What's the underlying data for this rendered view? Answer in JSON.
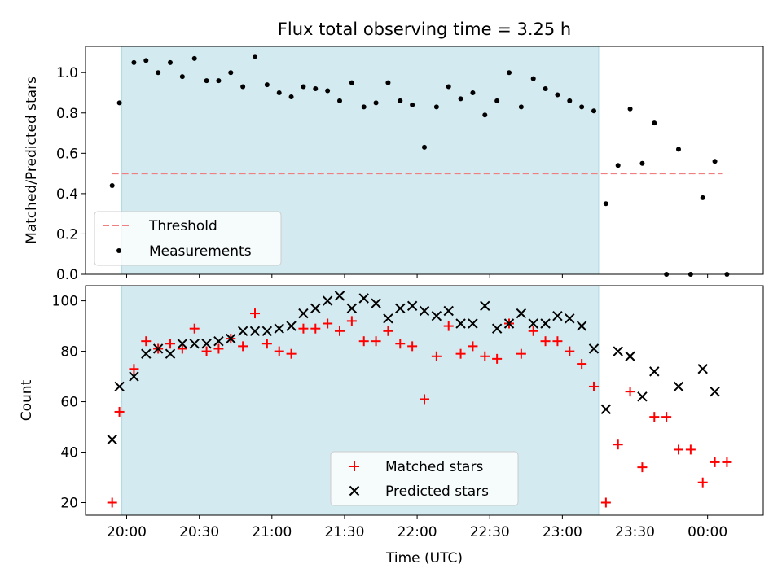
{
  "chart_data": [
    {
      "type": "scatter",
      "title": "Flux total observing time = 3.25 h",
      "xlabel": "",
      "ylabel": "Matched/Predicted stars",
      "ylim": [
        0,
        1.13
      ],
      "yticks": [
        "0.0",
        "0.2",
        "0.4",
        "0.6",
        "0.8",
        "1.0"
      ],
      "legend_position": "lower-left",
      "shaded_span": {
        "start": "19:58",
        "end": "23:15",
        "color": "#d3eaf0"
      },
      "threshold": {
        "name": "Threshold",
        "value": 0.5,
        "x_start": "19:54",
        "x_end": "00:06",
        "color": "#f08080",
        "style": "dashed"
      },
      "series": [
        {
          "name": "Measurements",
          "color": "#000000",
          "marker": "dot",
          "x": [
            "19:54",
            "19:57",
            "20:03",
            "20:08",
            "20:13",
            "20:18",
            "20:23",
            "20:28",
            "20:33",
            "20:38",
            "20:43",
            "20:48",
            "20:53",
            "20:58",
            "21:03",
            "21:08",
            "21:13",
            "21:18",
            "21:23",
            "21:28",
            "21:33",
            "21:38",
            "21:43",
            "21:48",
            "21:53",
            "21:58",
            "22:03",
            "22:08",
            "22:13",
            "22:18",
            "22:23",
            "22:28",
            "22:33",
            "22:38",
            "22:43",
            "22:48",
            "22:53",
            "22:58",
            "23:03",
            "23:08",
            "23:13",
            "23:18",
            "23:23",
            "23:28",
            "23:33",
            "23:38",
            "23:43",
            "23:48",
            "23:53",
            "23:58",
            "00:03",
            "00:08"
          ],
          "y": [
            0.44,
            0.85,
            1.05,
            1.06,
            1.0,
            1.05,
            0.98,
            1.07,
            0.96,
            0.96,
            1.0,
            0.93,
            1.08,
            0.94,
            0.9,
            0.88,
            0.93,
            0.92,
            0.91,
            0.86,
            0.95,
            0.83,
            0.85,
            0.95,
            0.86,
            0.84,
            0.63,
            0.83,
            0.93,
            0.87,
            0.9,
            0.79,
            0.86,
            1.0,
            0.83,
            0.97,
            0.92,
            0.89,
            0.86,
            0.83,
            0.81,
            0.35,
            0.54,
            0.82,
            0.55,
            0.75,
            0.0,
            0.62,
            0.0,
            0.38,
            0.56,
            0.0
          ]
        }
      ]
    },
    {
      "type": "scatter",
      "title": "",
      "xlabel": "Time (UTC)",
      "ylabel": "Count",
      "ylim": [
        15,
        106
      ],
      "yticks": [
        "20",
        "40",
        "60",
        "80",
        "100"
      ],
      "xticks": [
        "20:00",
        "20:30",
        "21:00",
        "21:30",
        "22:00",
        "22:30",
        "23:00",
        "23:30",
        "00:00"
      ],
      "legend_position": "lower-center",
      "shaded_span": {
        "start": "19:58",
        "end": "23:15",
        "color": "#d3eaf0"
      },
      "series": [
        {
          "name": "Matched stars",
          "color": "#ff0000",
          "marker": "plus",
          "x": [
            "19:54",
            "19:57",
            "20:03",
            "20:08",
            "20:13",
            "20:18",
            "20:23",
            "20:28",
            "20:33",
            "20:38",
            "20:43",
            "20:48",
            "20:53",
            "20:58",
            "21:03",
            "21:08",
            "21:13",
            "21:18",
            "21:23",
            "21:28",
            "21:33",
            "21:38",
            "21:43",
            "21:48",
            "21:53",
            "21:58",
            "22:03",
            "22:08",
            "22:13",
            "22:18",
            "22:23",
            "22:28",
            "22:33",
            "22:38",
            "22:43",
            "22:48",
            "22:53",
            "22:58",
            "23:03",
            "23:08",
            "23:13",
            "23:18",
            "23:23",
            "23:28",
            "23:33",
            "23:38",
            "23:43",
            "23:48",
            "23:53",
            "23:58",
            "00:03",
            "00:08"
          ],
          "y": [
            20,
            56,
            73,
            84,
            81,
            83,
            81,
            89,
            80,
            81,
            85,
            82,
            95,
            83,
            80,
            79,
            89,
            89,
            91,
            88,
            92,
            84,
            84,
            88,
            83,
            82,
            61,
            78,
            90,
            79,
            82,
            78,
            77,
            91,
            79,
            88,
            84,
            84,
            80,
            75,
            66,
            20,
            43,
            64,
            34,
            54,
            54,
            41,
            41,
            28,
            36,
            36
          ]
        },
        {
          "name": "Predicted stars",
          "color": "#000000",
          "marker": "x",
          "x": [
            "19:54",
            "19:57",
            "20:03",
            "20:08",
            "20:13",
            "20:18",
            "20:23",
            "20:28",
            "20:33",
            "20:38",
            "20:43",
            "20:48",
            "20:53",
            "20:58",
            "21:03",
            "21:08",
            "21:13",
            "21:18",
            "21:23",
            "21:28",
            "21:33",
            "21:38",
            "21:43",
            "21:48",
            "21:53",
            "21:58",
            "22:03",
            "22:08",
            "22:13",
            "22:18",
            "22:23",
            "22:28",
            "22:33",
            "22:38",
            "22:43",
            "22:48",
            "22:53",
            "22:58",
            "23:03",
            "23:08",
            "23:13",
            "23:18",
            "23:23",
            "23:28",
            "23:33",
            "23:38",
            "23:48",
            "23:58",
            "00:03"
          ],
          "y": [
            45,
            66,
            70,
            79,
            81,
            79,
            83,
            83,
            83,
            84,
            85,
            88,
            88,
            88,
            89,
            90,
            95,
            97,
            100,
            102,
            97,
            101,
            99,
            93,
            97,
            98,
            96,
            94,
            96,
            91,
            91,
            98,
            89,
            91,
            95,
            91,
            91,
            94,
            93,
            90,
            81,
            57,
            80,
            78,
            62,
            72,
            66,
            73,
            64
          ]
        }
      ]
    }
  ]
}
